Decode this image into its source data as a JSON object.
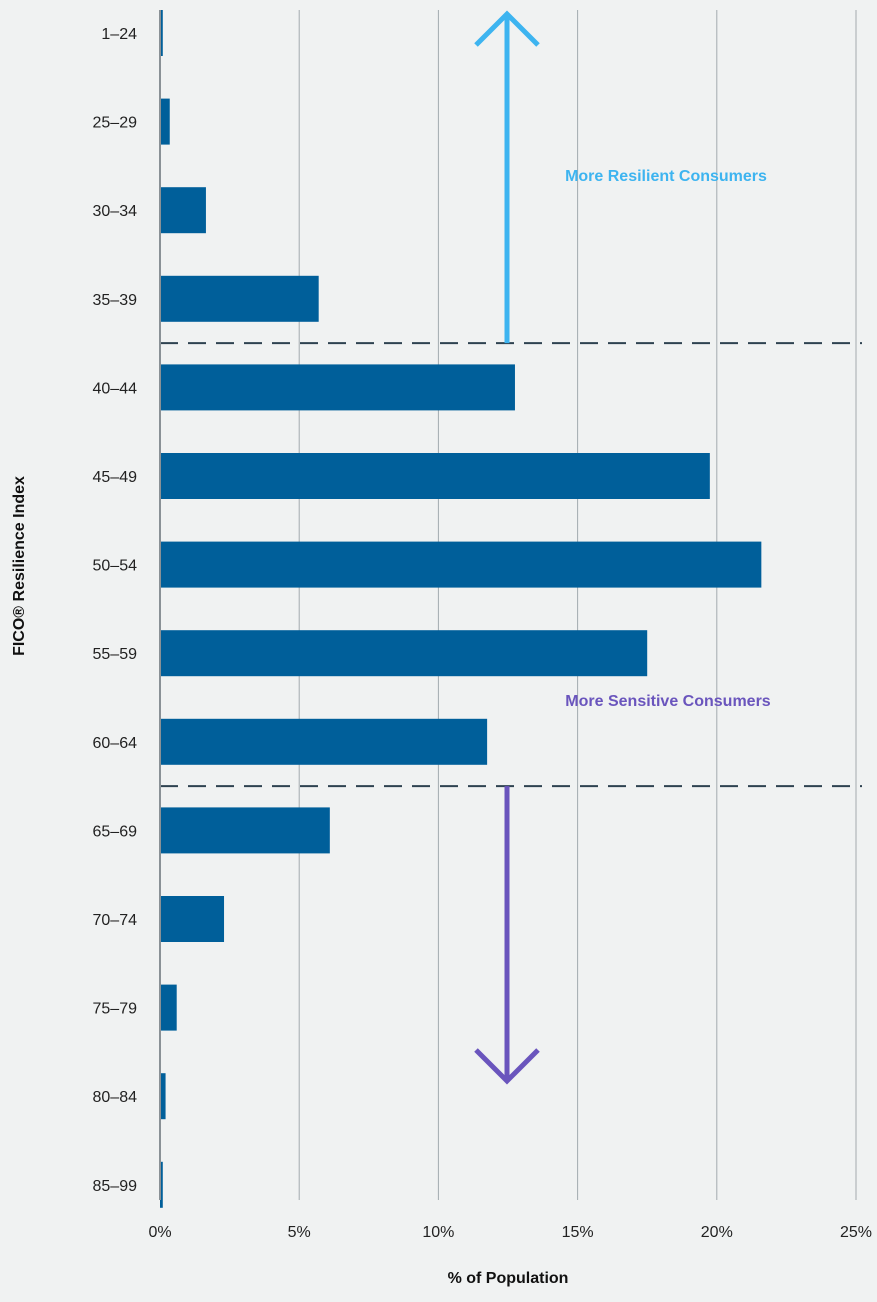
{
  "chart_data": {
    "type": "bar",
    "orientation": "horizontal",
    "categories": [
      "1–24",
      "25–29",
      "30–34",
      "35–39",
      "40–44",
      "45–49",
      "50–54",
      "55–59",
      "60–64",
      "65–69",
      "70–74",
      "75–79",
      "80–84",
      "85–99"
    ],
    "values": [
      0.1,
      0.35,
      1.65,
      5.7,
      12.75,
      19.75,
      21.6,
      17.5,
      11.75,
      6.1,
      2.3,
      0.6,
      0.2,
      0.1
    ],
    "xlabel": "% of Population",
    "ylabel": "FICO® Resilience Index",
    "xlim": [
      0,
      25
    ],
    "x_ticks": [
      "0%",
      "5%",
      "10%",
      "15%",
      "20%",
      "25%"
    ],
    "grid": "vertical",
    "annotations": {
      "resilient": "More Resilient Consumers",
      "sensitive": "More Sensitive Consumers"
    },
    "dividers_between": [
      [
        "35–39",
        "40–44"
      ],
      [
        "60–64",
        "65–69"
      ]
    ],
    "colors": {
      "bar": "#005f9a",
      "resilient": "#3db4f0",
      "sensitive": "#6a55bd",
      "divider": "#2e4250",
      "grid": "#a3aaaf",
      "background": "#f0f2f2"
    }
  }
}
